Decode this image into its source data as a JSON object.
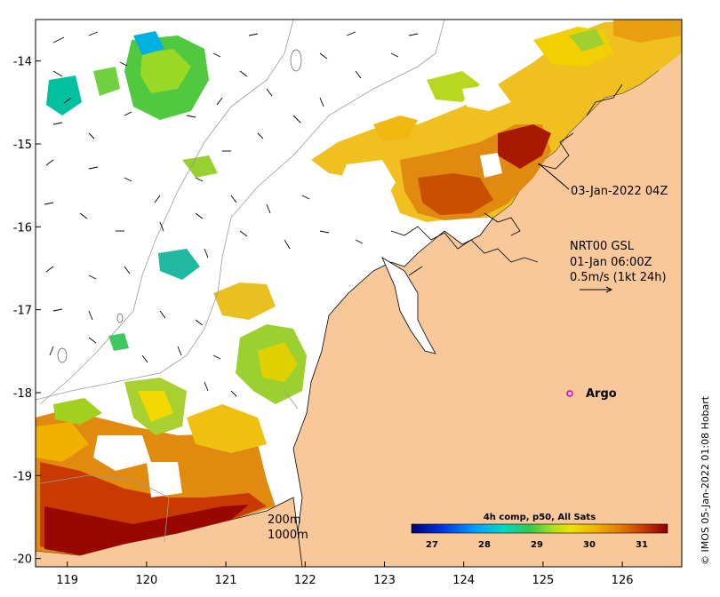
{
  "map": {
    "lon_ticks": [
      "119",
      "120",
      "121",
      "122",
      "123",
      "124",
      "125",
      "126"
    ],
    "lat_ticks": [
      "-14",
      "-15",
      "-16",
      "-17",
      "-18",
      "-19",
      "-20"
    ],
    "lon_range": [
      118.6,
      126.75
    ],
    "lat_range": [
      -20.1,
      -13.5
    ]
  },
  "annotations": {
    "timestamp": "03-Jan-2022 04Z",
    "current_title": "NRT00 GSL",
    "current_time": "01-Jan 06:00Z",
    "current_scale": "0.5m/s (1kt 24h)",
    "argo_label": "Argo",
    "isobath_200": "200m",
    "isobath_1000": "1000m",
    "credit": "© IMOS 05-Jan-2022 01:08 Hobart"
  },
  "colorbar": {
    "title": "4h comp, p50, All Sats",
    "tick_labels": [
      "27",
      "28",
      "29",
      "30",
      "31"
    ]
  },
  "colors": {
    "land": "#f9c89a",
    "coast": "#000000",
    "isobath": "#9a9a9a",
    "argo": "#d000d0"
  }
}
